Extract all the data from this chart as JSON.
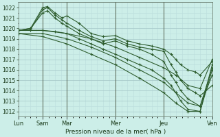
{
  "xlabel": "Pression niveau de la mer( hPa )",
  "bg_color": "#cceee8",
  "grid_color_major": "#aacccc",
  "grid_color_minor": "#bbdddd",
  "line_color": "#2d5c2d",
  "ylim": [
    1011.5,
    1022.5
  ],
  "yticks": [
    1012,
    1013,
    1014,
    1015,
    1016,
    1017,
    1018,
    1019,
    1020,
    1021,
    1022
  ],
  "xlim": [
    0,
    8
  ],
  "xtick_pos": [
    0,
    1,
    2,
    4,
    6,
    8
  ],
  "xtick_labels": [
    "Lun",
    "Sam",
    "Mar",
    "Mer",
    "Jeu",
    "Ven"
  ],
  "vline_pos": [
    1,
    2,
    4,
    6
  ],
  "series": [
    {
      "x": [
        0,
        0.5,
        1.0,
        1.2,
        1.5,
        1.8,
        2.0,
        2.5,
        3.0,
        3.5,
        4.0,
        4.5,
        5.0,
        5.5,
        6.0,
        6.3,
        6.5,
        6.7,
        7.0,
        7.3,
        7.5,
        8.0
      ],
      "y": [
        1019.8,
        1020.0,
        1022.0,
        1022.1,
        1021.5,
        1021.0,
        1021.2,
        1020.5,
        1019.5,
        1019.2,
        1019.3,
        1018.8,
        1018.5,
        1018.3,
        1018.0,
        1017.5,
        1017.0,
        1016.5,
        1016.0,
        1015.8,
        1015.5,
        1016.8
      ]
    },
    {
      "x": [
        0,
        0.5,
        1.0,
        1.2,
        1.5,
        1.8,
        2.0,
        2.5,
        3.0,
        3.5,
        4.0,
        4.5,
        5.0,
        5.5,
        6.0,
        6.3,
        6.5,
        6.7,
        7.0,
        7.3,
        7.5,
        8.0
      ],
      "y": [
        1019.8,
        1019.9,
        1021.8,
        1022.0,
        1021.3,
        1020.8,
        1020.5,
        1019.8,
        1019.2,
        1018.8,
        1019.0,
        1018.5,
        1018.2,
        1018.0,
        1017.8,
        1016.5,
        1015.8,
        1015.0,
        1014.2,
        1013.8,
        1013.5,
        1014.5
      ]
    },
    {
      "x": [
        0,
        0.5,
        1.0,
        1.2,
        1.5,
        1.8,
        2.0,
        2.5,
        3.0,
        3.5,
        4.0,
        4.5,
        5.0,
        5.5,
        6.0,
        6.3,
        6.5,
        6.7,
        7.0,
        7.5,
        8.0
      ],
      "y": [
        1019.8,
        1020.0,
        1021.5,
        1021.7,
        1021.0,
        1020.5,
        1020.2,
        1019.5,
        1019.0,
        1018.5,
        1018.8,
        1018.3,
        1018.0,
        1017.5,
        1016.8,
        1015.5,
        1014.8,
        1014.0,
        1013.2,
        1012.5,
        1015.5
      ]
    },
    {
      "x": [
        0,
        0.5,
        1.0,
        1.5,
        2.0,
        2.5,
        3.0,
        3.5,
        4.0,
        4.5,
        5.0,
        5.5,
        6.0,
        6.3,
        6.5,
        6.7,
        7.0,
        7.5,
        8.0
      ],
      "y": [
        1019.8,
        1019.8,
        1019.8,
        1019.7,
        1019.5,
        1019.0,
        1018.5,
        1018.0,
        1017.5,
        1017.0,
        1016.5,
        1016.0,
        1015.2,
        1014.5,
        1013.8,
        1013.0,
        1012.2,
        1012.0,
        1016.5
      ]
    },
    {
      "x": [
        0,
        1.0,
        2.0,
        3.0,
        4.0,
        5.0,
        6.0,
        6.5,
        7.0,
        7.5,
        8.0
      ],
      "y": [
        1019.8,
        1019.8,
        1019.5,
        1019.0,
        1018.2,
        1017.2,
        1016.2,
        1015.5,
        1014.5,
        1014.2,
        1017.0
      ]
    },
    {
      "x": [
        0,
        1.0,
        2.0,
        3.0,
        4.0,
        5.0,
        6.0,
        6.5,
        7.0,
        7.5,
        8.0
      ],
      "y": [
        1019.5,
        1019.5,
        1019.0,
        1018.2,
        1017.2,
        1016.0,
        1014.8,
        1013.8,
        1012.8,
        1012.5,
        1016.2
      ]
    },
    {
      "x": [
        0,
        1.0,
        2.0,
        3.0,
        4.0,
        5.0,
        6.0,
        6.5,
        7.0,
        7.5,
        8.0
      ],
      "y": [
        1019.5,
        1019.2,
        1018.5,
        1017.5,
        1016.5,
        1015.2,
        1013.8,
        1012.8,
        1012.0,
        1012.0,
        1016.0
      ]
    }
  ]
}
